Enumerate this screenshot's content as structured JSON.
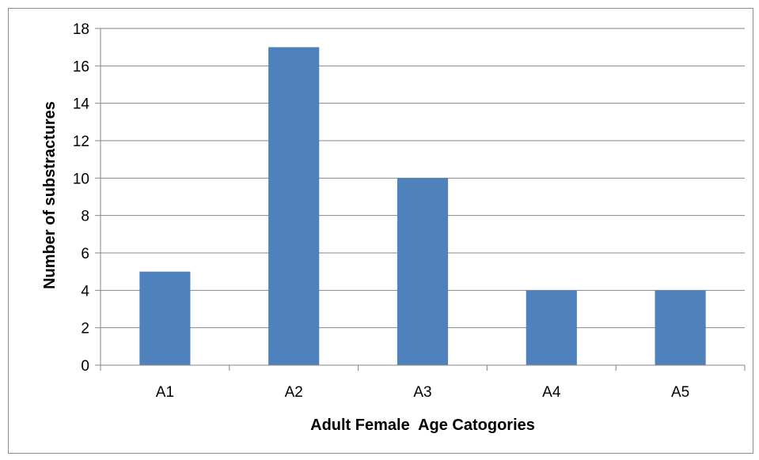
{
  "chart_data": {
    "type": "bar",
    "categories": [
      "A1",
      "A2",
      "A3",
      "A4",
      "A5"
    ],
    "values": [
      5,
      17,
      10,
      4,
      4
    ],
    "title": "",
    "xlabel": "Adult Female  Age Catogories",
    "ylabel": "Number of substractures",
    "ylim": [
      0,
      18
    ],
    "yticks": [
      "0",
      "2",
      "4",
      "6",
      "8",
      "10",
      "12",
      "14",
      "16",
      "18"
    ],
    "grid": true,
    "legend": "none",
    "bar_color": "#4f81bd",
    "grid_color": "#868686"
  }
}
